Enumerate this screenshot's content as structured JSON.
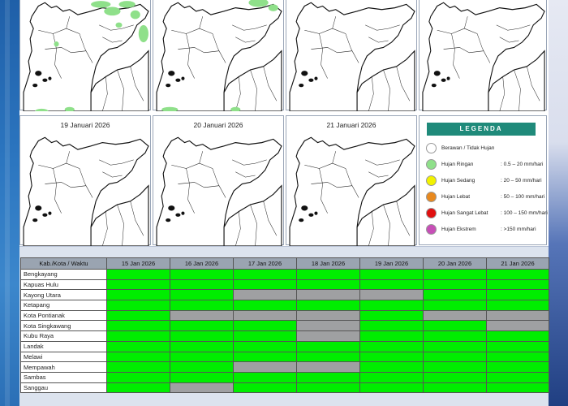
{
  "maps": [
    {
      "date": "",
      "blobs": "heavy"
    },
    {
      "date": "",
      "blobs": "some"
    },
    {
      "date": "",
      "blobs": "none"
    },
    {
      "date": "",
      "blobs": "none"
    },
    {
      "date": "19 Januari 2026",
      "blobs": "none"
    },
    {
      "date": "20 Januari 2026",
      "blobs": "none"
    },
    {
      "date": "21 Januari 2026",
      "blobs": "none"
    }
  ],
  "legend": {
    "title": "LEGENDA",
    "items": [
      {
        "name": "Berawan / Tidak Hujan",
        "range": "",
        "color": "#ffffff"
      },
      {
        "name": "Hujan Ringan",
        "range": ": 0.5 – 20 mm/hari",
        "color": "#8fe08a"
      },
      {
        "name": "Hujan Sedang",
        "range": ": 20 – 50 mm/hari",
        "color": "#f2f200"
      },
      {
        "name": "Hujan Lebat",
        "range": ": 50 – 100 mm/hari",
        "color": "#e8891e"
      },
      {
        "name": "Hujan Sangat Lebat",
        "range": ": 100 – 150 mm/hari",
        "color": "#e01010"
      },
      {
        "name": "Hujan Ekstrem",
        "range": ": >150 mm/hari",
        "color": "#c74fb7"
      }
    ]
  },
  "table": {
    "header": [
      "Kab./Kota / Waktu",
      "15 Jan 2026",
      "16 Jan 2026",
      "17 Jan 2026",
      "18 Jan 2026",
      "19 Jan 2026",
      "20 Jan 2026",
      "21 Jan 2026"
    ],
    "colors": {
      "rain": "#00ee00",
      "cloudy": "#9fa0a2"
    },
    "rows": [
      {
        "name": "Bengkayang",
        "cells": [
          "g",
          "g",
          "g",
          "g",
          "g",
          "g",
          "g"
        ]
      },
      {
        "name": "Kapuas Hulu",
        "cells": [
          "g",
          "g",
          "g",
          "g",
          "g",
          "g",
          "g"
        ]
      },
      {
        "name": "Kayong Utara",
        "cells": [
          "g",
          "g",
          "x",
          "x",
          "x",
          "g",
          "g"
        ]
      },
      {
        "name": "Ketapang",
        "cells": [
          "g",
          "g",
          "g",
          "g",
          "g",
          "g",
          "g"
        ]
      },
      {
        "name": "Kota Pontianak",
        "cells": [
          "g",
          "x",
          "x",
          "x",
          "g",
          "x",
          "x"
        ]
      },
      {
        "name": "Kota Singkawang",
        "cells": [
          "g",
          "g",
          "g",
          "x",
          "g",
          "g",
          "x"
        ]
      },
      {
        "name": "Kubu Raya",
        "cells": [
          "g",
          "g",
          "g",
          "x",
          "g",
          "g",
          "g"
        ]
      },
      {
        "name": "Landak",
        "cells": [
          "g",
          "g",
          "g",
          "g",
          "g",
          "g",
          "g"
        ]
      },
      {
        "name": "Melawi",
        "cells": [
          "g",
          "g",
          "g",
          "g",
          "g",
          "g",
          "g"
        ]
      },
      {
        "name": "Mempawah",
        "cells": [
          "g",
          "g",
          "x",
          "x",
          "g",
          "g",
          "g"
        ]
      },
      {
        "name": "Sambas",
        "cells": [
          "g",
          "g",
          "g",
          "g",
          "g",
          "g",
          "g"
        ]
      },
      {
        "name": "Sanggau",
        "cells": [
          "g",
          "x",
          "g",
          "g",
          "g",
          "g",
          "g"
        ]
      }
    ]
  }
}
